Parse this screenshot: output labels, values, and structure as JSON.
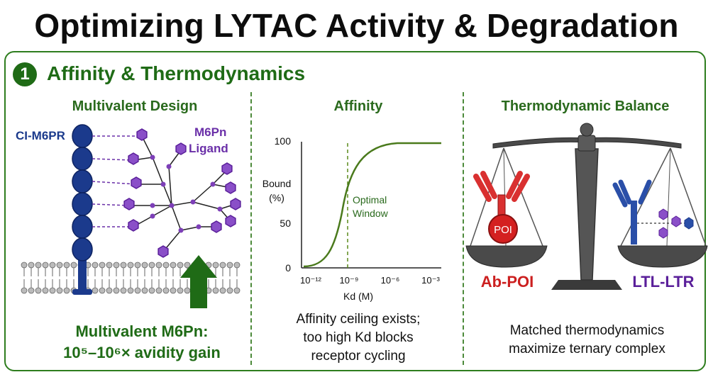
{
  "title": "Optimizing LYTAC Activity & Degradation",
  "section": {
    "number": "1",
    "title": "Affinity & Thermodynamics"
  },
  "col1": {
    "title": "Multivalent Design",
    "receptor_label": "CI-M6PR",
    "ligand_label_1": "M6Pn",
    "ligand_label_2": "Ligand",
    "caption_1": "Multivalent M6Pn:",
    "caption_2": "10⁵–10⁶× avidity gain",
    "colors": {
      "receptor": "#1b3a8c",
      "ligand": "#7d3fb8",
      "arrow": "#1f6b16"
    }
  },
  "col2": {
    "title": "Affinity",
    "caption_1": "Affinity ceiling exists;",
    "caption_2": "too high Kd blocks",
    "caption_3": "receptor cycling",
    "chart_data": {
      "type": "line",
      "ylabel_1": "Bound",
      "ylabel_2": "(%)",
      "xlabel": "Kd (M)",
      "x_ticks": [
        "10⁻¹²",
        "10⁻⁹",
        "10⁻⁶",
        "10⁻³"
      ],
      "y_ticks": [
        "0",
        "50",
        "100"
      ],
      "ylim": [
        0,
        100
      ],
      "annotation_1": "Optimal",
      "annotation_2": "Window",
      "curve_color": "#4a7a1c"
    }
  },
  "col3": {
    "title": "Thermodynamic Balance",
    "left_label": "Ab-POI",
    "right_label": "LTL-LTR",
    "poi_label": "POI",
    "caption_1": "Matched thermodynamics",
    "caption_2": "maximize ternary complex",
    "colors": {
      "left": "#cc2020",
      "right": "#5a1f9a",
      "antibody_left": "#d93030",
      "antibody_right": "#2a4fa8"
    }
  }
}
